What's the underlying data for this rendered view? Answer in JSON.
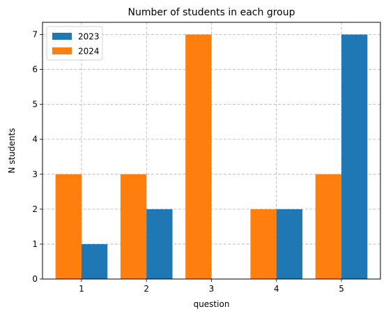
{
  "chart_data": {
    "type": "bar",
    "title": "Number of students in each group",
    "xlabel": "question",
    "ylabel": "N students",
    "categories": [
      "1",
      "2",
      "3",
      "4",
      "5"
    ],
    "series": [
      {
        "name": "2024",
        "color": "#ff7f0e",
        "values": [
          3,
          3,
          7,
          2,
          3
        ]
      },
      {
        "name": "2023",
        "color": "#1f77b4",
        "values": [
          1,
          2,
          0,
          2,
          7
        ]
      }
    ],
    "legend_order": [
      "2023",
      "2024"
    ],
    "yticks": [
      0,
      1,
      2,
      3,
      4,
      5,
      6,
      7
    ],
    "ylim": [
      0,
      7.35
    ],
    "grid": true,
    "legend_position": "top-left"
  }
}
